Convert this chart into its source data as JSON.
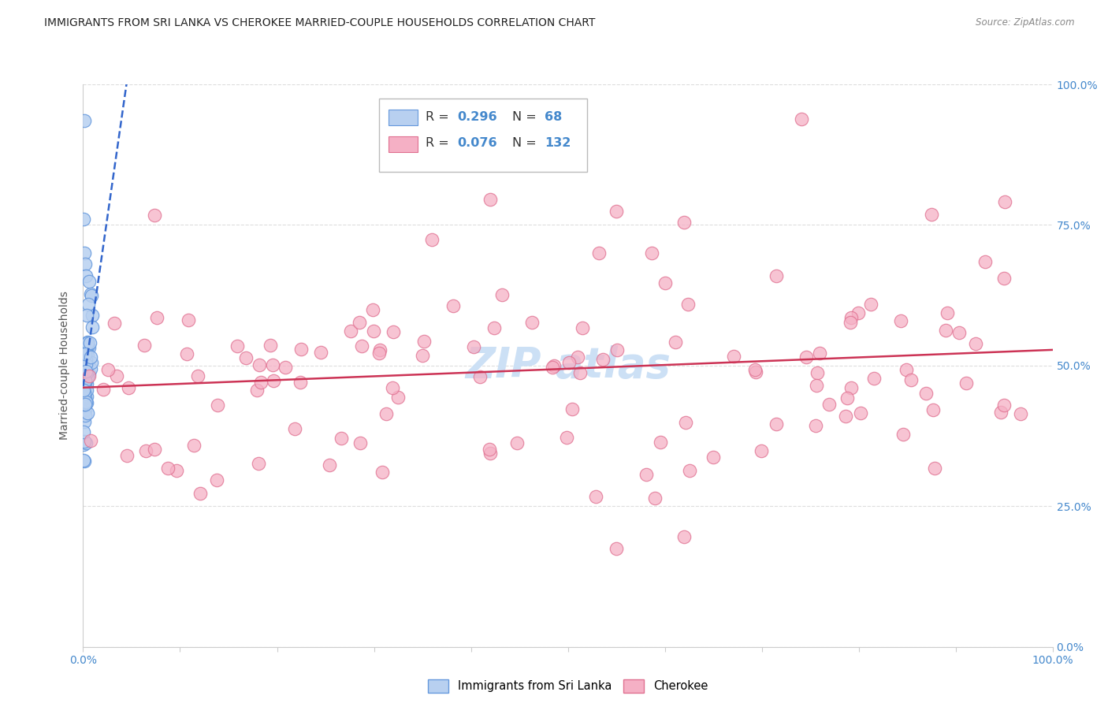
{
  "title": "IMMIGRANTS FROM SRI LANKA VS CHEROKEE MARRIED-COUPLE HOUSEHOLDS CORRELATION CHART",
  "source": "Source: ZipAtlas.com",
  "ylabel": "Married-couple Households",
  "ytick_labels": [
    "0.0%",
    "25.0%",
    "50.0%",
    "75.0%",
    "100.0%"
  ],
  "ytick_vals": [
    0.0,
    0.25,
    0.5,
    0.75,
    1.0
  ],
  "legend_sl_R": "0.296",
  "legend_sl_N": "68",
  "legend_ch_R": "0.076",
  "legend_ch_N": "132",
  "sl_color_face": "#b8d0f0",
  "sl_color_edge": "#6699dd",
  "ch_color_face": "#f5b0c5",
  "ch_color_edge": "#e07090",
  "sl_line_color": "#3366cc",
  "ch_line_color": "#cc3355",
  "watermark_color": "#cce0f5",
  "axis_text_color": "#4488cc",
  "title_color": "#222222",
  "source_color": "#888888",
  "background": "#ffffff",
  "grid_color": "#dddddd"
}
